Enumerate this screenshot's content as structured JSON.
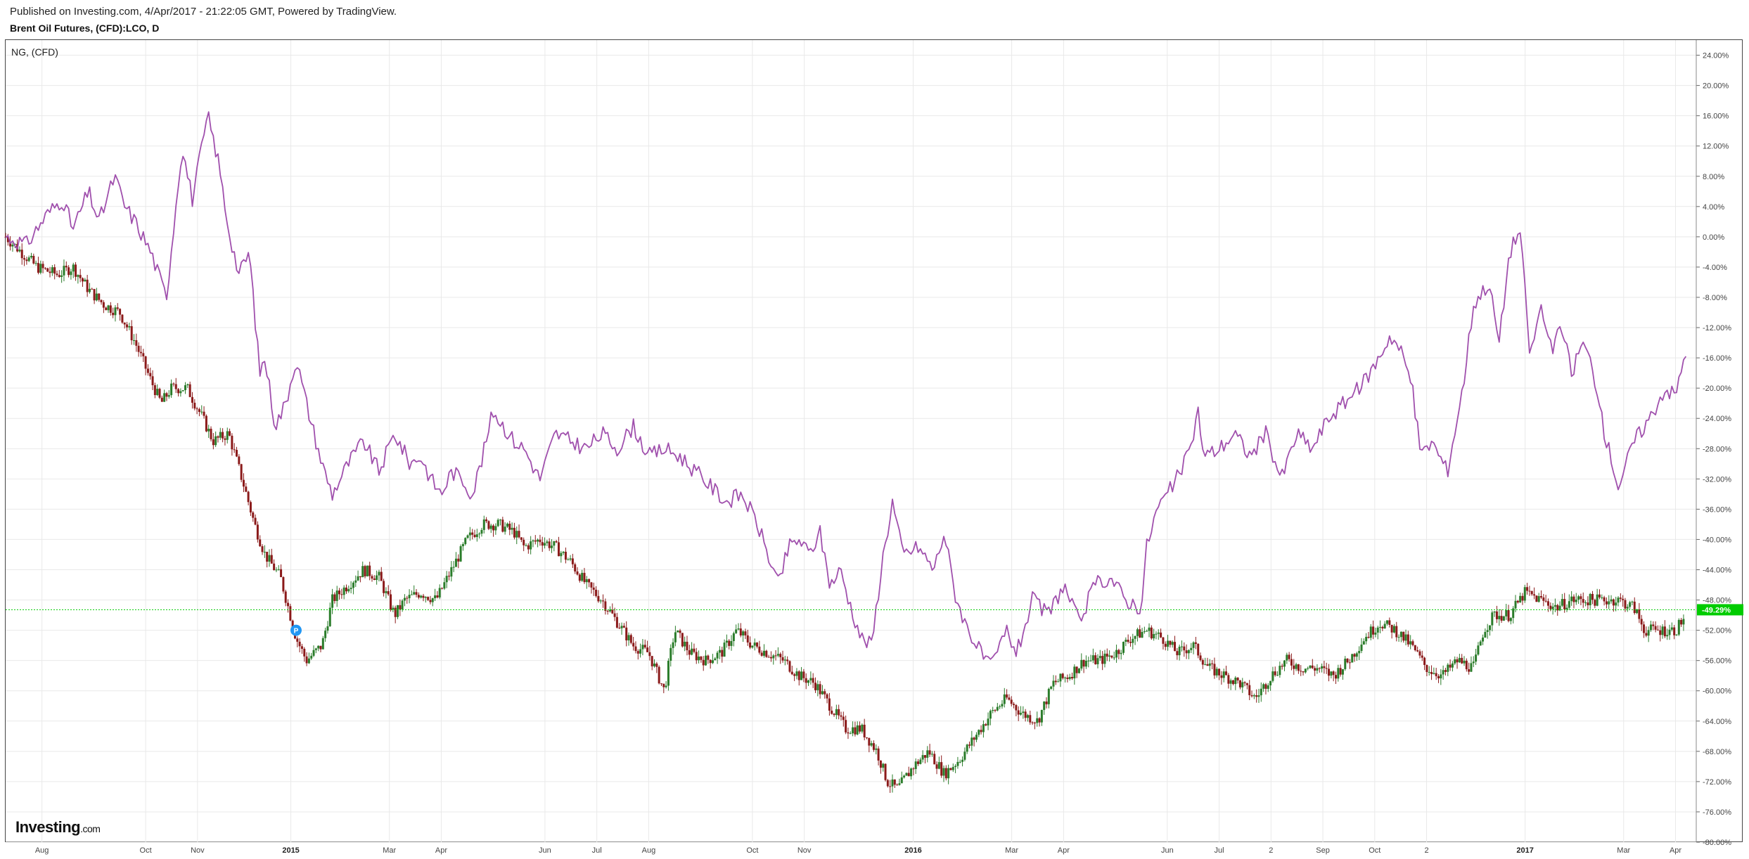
{
  "header": {
    "published": "Published on Investing.com, 4/Apr/2017 - 21:22:05 GMT, Powered by TradingView.",
    "symbol": "Brent Oil Futures, (CFD):LCO, D"
  },
  "legend": {
    "compare_label": "NG,  (CFD)"
  },
  "brand": {
    "name": "Investing",
    "suffix": ".com"
  },
  "chart_data": {
    "type": "line",
    "y_axis_position": "right",
    "yunit": "%",
    "ylim": [
      -80,
      26
    ],
    "yticks": [
      "24.00%",
      "20.00%",
      "16.00%",
      "12.00%",
      "8.00%",
      "4.00%",
      "0.00%",
      "-4.00%",
      "-8.00%",
      "-12.00%",
      "-16.00%",
      "-20.00%",
      "-24.00%",
      "-28.00%",
      "-32.00%",
      "-36.00%",
      "-40.00%",
      "-44.00%",
      "-48.00%",
      "-52.00%",
      "-56.00%",
      "-60.00%",
      "-64.00%",
      "-68.00%",
      "-72.00%",
      "-76.00%",
      "-80.00%"
    ],
    "xticks": [
      {
        "label": "Aug",
        "t": 0.7,
        "bold": false
      },
      {
        "label": "Oct",
        "t": 2.7,
        "bold": false
      },
      {
        "label": "Nov",
        "t": 3.7,
        "bold": false
      },
      {
        "label": "2015",
        "t": 5.5,
        "bold": true
      },
      {
        "label": "Mar",
        "t": 7.4,
        "bold": false
      },
      {
        "label": "Apr",
        "t": 8.4,
        "bold": false
      },
      {
        "label": "Jun",
        "t": 10.4,
        "bold": false
      },
      {
        "label": "Jul",
        "t": 11.4,
        "bold": false
      },
      {
        "label": "Aug",
        "t": 12.4,
        "bold": false
      },
      {
        "label": "Oct",
        "t": 14.4,
        "bold": false
      },
      {
        "label": "Nov",
        "t": 15.4,
        "bold": false
      },
      {
        "label": "2016",
        "t": 17.5,
        "bold": true
      },
      {
        "label": "Mar",
        "t": 19.4,
        "bold": false
      },
      {
        "label": "Apr",
        "t": 20.4,
        "bold": false
      },
      {
        "label": "Jun",
        "t": 22.4,
        "bold": false
      },
      {
        "label": "Jul",
        "t": 23.4,
        "bold": false
      },
      {
        "label": "2",
        "t": 24.4,
        "bold": false
      },
      {
        "label": "Sep",
        "t": 25.4,
        "bold": false
      },
      {
        "label": "Oct",
        "t": 26.4,
        "bold": false
      },
      {
        "label": "2",
        "t": 27.4,
        "bold": false
      },
      {
        "label": "2017",
        "t": 29.3,
        "bold": true
      },
      {
        "label": "Mar",
        "t": 31.2,
        "bold": false
      },
      {
        "label": "Apr",
        "t": 32.2,
        "bold": false
      }
    ],
    "series": [
      {
        "name": "NG,  (CFD)",
        "kind": "line",
        "color": "#a050ad",
        "points": [
          [
            0,
            0
          ],
          [
            0.4,
            -1
          ],
          [
            0.8,
            3
          ],
          [
            1.1,
            5
          ],
          [
            1.3,
            1
          ],
          [
            1.6,
            6
          ],
          [
            1.8,
            2
          ],
          [
            2.1,
            8
          ],
          [
            2.3,
            4
          ],
          [
            2.5,
            2
          ],
          [
            2.8,
            -2
          ],
          [
            3.1,
            -8
          ],
          [
            3.4,
            12
          ],
          [
            3.6,
            5
          ],
          [
            3.9,
            16
          ],
          [
            4.1,
            10
          ],
          [
            4.3,
            1
          ],
          [
            4.5,
            -5
          ],
          [
            4.7,
            -2
          ],
          [
            4.9,
            -18
          ],
          [
            5.0,
            -16
          ],
          [
            5.2,
            -25
          ],
          [
            5.4,
            -22
          ],
          [
            5.6,
            -16
          ],
          [
            5.8,
            -22
          ],
          [
            6.1,
            -30
          ],
          [
            6.3,
            -34
          ],
          [
            6.6,
            -30
          ],
          [
            6.9,
            -27
          ],
          [
            7.2,
            -31
          ],
          [
            7.5,
            -26
          ],
          [
            7.8,
            -30
          ],
          [
            8.0,
            -29
          ],
          [
            8.2,
            -32
          ],
          [
            8.4,
            -34
          ],
          [
            8.6,
            -31
          ],
          [
            8.8,
            -32
          ],
          [
            9.0,
            -34
          ],
          [
            9.2,
            -29
          ],
          [
            9.4,
            -23
          ],
          [
            9.6,
            -25
          ],
          [
            9.8,
            -27
          ],
          [
            10.0,
            -28
          ],
          [
            10.3,
            -32
          ],
          [
            10.6,
            -26
          ],
          [
            10.9,
            -27
          ],
          [
            11.2,
            -28
          ],
          [
            11.5,
            -26
          ],
          [
            11.8,
            -28
          ],
          [
            12.1,
            -25
          ],
          [
            12.4,
            -29
          ],
          [
            12.7,
            -28
          ],
          [
            13.0,
            -29
          ],
          [
            13.3,
            -31
          ],
          [
            13.6,
            -33
          ],
          [
            13.9,
            -35
          ],
          [
            14.2,
            -34
          ],
          [
            14.5,
            -38
          ],
          [
            14.8,
            -44
          ],
          [
            14.9,
            -46
          ],
          [
            15.1,
            -41
          ],
          [
            15.3,
            -40
          ],
          [
            15.5,
            -42
          ],
          [
            15.7,
            -39
          ],
          [
            15.9,
            -46
          ],
          [
            16.1,
            -44
          ],
          [
            16.3,
            -49
          ],
          [
            16.5,
            -53
          ],
          [
            16.7,
            -54
          ],
          [
            16.9,
            -43
          ],
          [
            17.1,
            -35
          ],
          [
            17.3,
            -42
          ],
          [
            17.6,
            -41
          ],
          [
            17.9,
            -44
          ],
          [
            18.1,
            -39
          ],
          [
            18.3,
            -47
          ],
          [
            18.5,
            -51
          ],
          [
            18.8,
            -55
          ],
          [
            19.0,
            -57
          ],
          [
            19.3,
            -52
          ],
          [
            19.5,
            -55
          ],
          [
            19.8,
            -48
          ],
          [
            20.1,
            -50
          ],
          [
            20.4,
            -46
          ],
          [
            20.7,
            -51
          ],
          [
            21.0,
            -46
          ],
          [
            21.3,
            -45
          ],
          [
            21.6,
            -48
          ],
          [
            21.9,
            -49
          ],
          [
            22.0,
            -41
          ],
          [
            22.2,
            -36
          ],
          [
            22.5,
            -33
          ],
          [
            22.8,
            -29
          ],
          [
            23.0,
            -23
          ],
          [
            23.1,
            -29
          ],
          [
            23.4,
            -28
          ],
          [
            23.7,
            -26
          ],
          [
            24.0,
            -29
          ],
          [
            24.3,
            -26
          ],
          [
            24.6,
            -32
          ],
          [
            24.9,
            -26
          ],
          [
            25.2,
            -28
          ],
          [
            25.5,
            -24
          ],
          [
            25.8,
            -22
          ],
          [
            26.1,
            -20
          ],
          [
            26.4,
            -17
          ],
          [
            26.7,
            -13
          ],
          [
            26.9,
            -15
          ],
          [
            27.1,
            -19
          ],
          [
            27.3,
            -29
          ],
          [
            27.5,
            -27
          ],
          [
            27.8,
            -31
          ],
          [
            28.1,
            -20
          ],
          [
            28.3,
            -9
          ],
          [
            28.6,
            -6
          ],
          [
            28.8,
            -14
          ],
          [
            29.0,
            -2
          ],
          [
            29.2,
            1
          ],
          [
            29.4,
            -16
          ],
          [
            29.6,
            -9
          ],
          [
            29.8,
            -15
          ],
          [
            30.0,
            -12
          ],
          [
            30.2,
            -18
          ],
          [
            30.4,
            -14
          ],
          [
            30.6,
            -17
          ],
          [
            30.8,
            -25
          ],
          [
            31.1,
            -33
          ],
          [
            31.4,
            -27
          ],
          [
            31.7,
            -24
          ],
          [
            32.0,
            -20
          ],
          [
            32.2,
            -21
          ],
          [
            32.4,
            -15
          ]
        ]
      },
      {
        "name": "",
        "kind": "candlestick",
        "up_color": "#2a7c2a",
        "down_color": "#8b1a1a",
        "points": [
          [
            0,
            0
          ],
          [
            0.3,
            -2
          ],
          [
            0.6,
            -4
          ],
          [
            1.0,
            -5
          ],
          [
            1.3,
            -4
          ],
          [
            1.6,
            -7
          ],
          [
            1.9,
            -9
          ],
          [
            2.2,
            -10
          ],
          [
            2.5,
            -14
          ],
          [
            2.8,
            -19
          ],
          [
            3.0,
            -22
          ],
          [
            3.2,
            -20
          ],
          [
            3.5,
            -20
          ],
          [
            3.8,
            -24
          ],
          [
            4.0,
            -27
          ],
          [
            4.3,
            -26
          ],
          [
            4.6,
            -33
          ],
          [
            4.8,
            -38
          ],
          [
            5.0,
            -42
          ],
          [
            5.3,
            -45
          ],
          [
            5.6,
            -53
          ],
          [
            5.8,
            -56
          ],
          [
            6.1,
            -54
          ],
          [
            6.3,
            -48
          ],
          [
            6.6,
            -46
          ],
          [
            6.9,
            -44
          ],
          [
            7.2,
            -45
          ],
          [
            7.5,
            -50
          ],
          [
            7.7,
            -48
          ],
          [
            8.0,
            -47
          ],
          [
            8.3,
            -48
          ],
          [
            8.6,
            -44
          ],
          [
            8.9,
            -40
          ],
          [
            9.2,
            -38
          ],
          [
            9.5,
            -38
          ],
          [
            9.8,
            -39
          ],
          [
            10.0,
            -41
          ],
          [
            10.3,
            -40
          ],
          [
            10.6,
            -41
          ],
          [
            10.9,
            -43
          ],
          [
            11.2,
            -46
          ],
          [
            11.5,
            -48
          ],
          [
            11.8,
            -51
          ],
          [
            12.1,
            -54
          ],
          [
            12.4,
            -55
          ],
          [
            12.7,
            -60
          ],
          [
            12.9,
            -52
          ],
          [
            13.2,
            -55
          ],
          [
            13.5,
            -56
          ],
          [
            13.8,
            -55
          ],
          [
            14.1,
            -52
          ],
          [
            14.4,
            -54
          ],
          [
            14.7,
            -55
          ],
          [
            15.0,
            -56
          ],
          [
            15.3,
            -58
          ],
          [
            15.6,
            -59
          ],
          [
            15.9,
            -62
          ],
          [
            16.2,
            -65
          ],
          [
            16.5,
            -65
          ],
          [
            16.8,
            -68
          ],
          [
            17.0,
            -72
          ],
          [
            17.2,
            -73
          ],
          [
            17.5,
            -70
          ],
          [
            17.8,
            -68
          ],
          [
            18.1,
            -71
          ],
          [
            18.4,
            -69
          ],
          [
            18.7,
            -66
          ],
          [
            19.0,
            -63
          ],
          [
            19.3,
            -61
          ],
          [
            19.6,
            -63
          ],
          [
            19.9,
            -64
          ],
          [
            20.2,
            -59
          ],
          [
            20.5,
            -58
          ],
          [
            20.8,
            -56
          ],
          [
            21.1,
            -56
          ],
          [
            21.4,
            -55
          ],
          [
            21.7,
            -53
          ],
          [
            22.0,
            -52
          ],
          [
            22.3,
            -53
          ],
          [
            22.6,
            -55
          ],
          [
            22.9,
            -54
          ],
          [
            23.2,
            -57
          ],
          [
            23.5,
            -58
          ],
          [
            23.8,
            -59
          ],
          [
            24.1,
            -61
          ],
          [
            24.4,
            -58
          ],
          [
            24.7,
            -56
          ],
          [
            25.0,
            -57
          ],
          [
            25.3,
            -57
          ],
          [
            25.6,
            -58
          ],
          [
            25.9,
            -56
          ],
          [
            26.2,
            -53
          ],
          [
            26.5,
            -51
          ],
          [
            26.8,
            -52
          ],
          [
            27.1,
            -54
          ],
          [
            27.4,
            -57
          ],
          [
            27.7,
            -58
          ],
          [
            28.0,
            -56
          ],
          [
            28.3,
            -57
          ],
          [
            28.5,
            -52
          ],
          [
            28.7,
            -50
          ],
          [
            29.0,
            -50
          ],
          [
            29.3,
            -47
          ],
          [
            29.6,
            -48
          ],
          [
            29.9,
            -49
          ],
          [
            30.2,
            -48
          ],
          [
            30.5,
            -48
          ],
          [
            30.8,
            -48
          ],
          [
            31.1,
            -48
          ],
          [
            31.4,
            -49
          ],
          [
            31.6,
            -52
          ],
          [
            31.9,
            -52
          ],
          [
            32.2,
            -52
          ],
          [
            32.4,
            -50
          ]
        ]
      }
    ],
    "current_value": {
      "label": "-49.29%",
      "value": -49.29,
      "color": "#00cc00"
    },
    "event_marker": {
      "label": "P",
      "t": 5.6,
      "value": -52,
      "color": "#2196f3"
    },
    "grid": true,
    "legend_position": "top-left"
  }
}
